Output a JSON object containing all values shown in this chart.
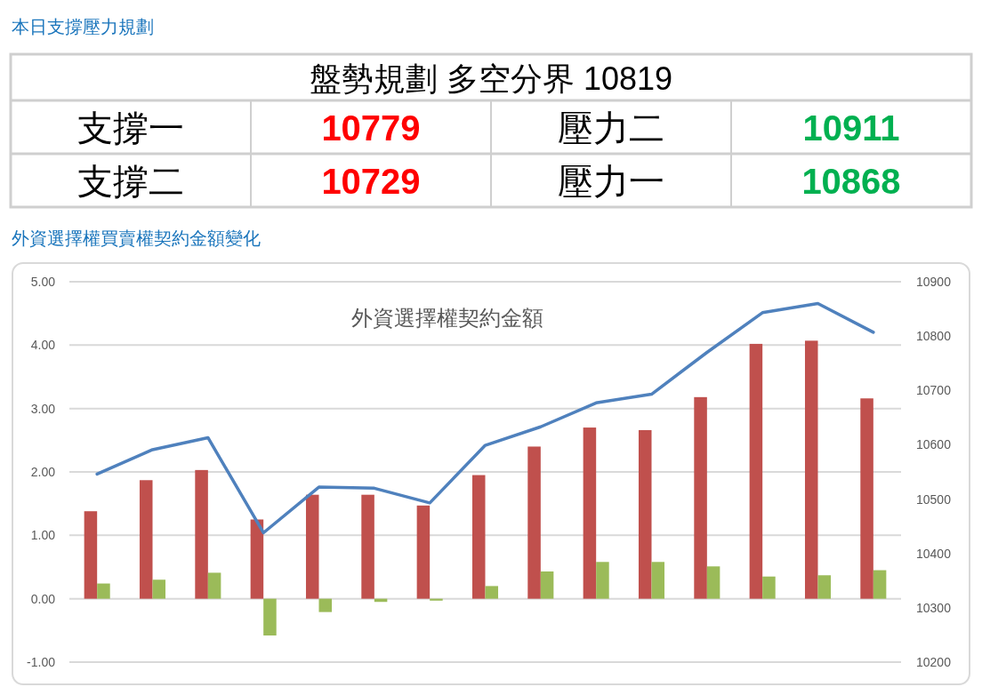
{
  "chart_data": [
    {
      "type": "other",
      "title": "本日支撐壓力規劃",
      "annotations": [
        "盤勢規劃 多空分界 10819",
        "支撐一",
        "10779",
        "壓力二",
        "10911",
        "支撐二",
        "10729",
        "壓力一",
        "10868"
      ],
      "colors": [
        "#000000",
        "#000000",
        "#ff0000",
        "#000000",
        "#00b050",
        "#000000",
        "#ff0000",
        "#000000",
        "#00b050"
      ]
    },
    {
      "type": "bar",
      "title": "外資選擇權買賣權契約金額變化",
      "subtitle": "外資選擇權契約金額",
      "categories": [
        null,
        null,
        null,
        null,
        null,
        null,
        null,
        null,
        null,
        null,
        null,
        null,
        null,
        null,
        null
      ],
      "series": [
        {
          "color": "#c0504d",
          "values": [
            1.38,
            1.87,
            2.03,
            1.25,
            1.64,
            1.64,
            1.47,
            1.95,
            2.4,
            2.7,
            2.66,
            3.18,
            4.02,
            4.07,
            3.16
          ]
        },
        {
          "color": "#9bbb59",
          "values": [
            0.24,
            0.3,
            0.41,
            -0.58,
            -0.21,
            -0.05,
            -0.03,
            0.2,
            0.43,
            0.58,
            0.58,
            0.51,
            0.35,
            0.37,
            0.45
          ]
        },
        {
          "type": "line",
          "axis": "y2",
          "color": "#4f81bd",
          "values": [
            10546,
            10591,
            10613,
            10438,
            10522,
            10520,
            10493,
            10599,
            10633,
            10677,
            10693,
            10770,
            10843,
            10860,
            10807
          ]
        }
      ],
      "ylim": [
        -1,
        5
      ],
      "yticks": [
        {
          "value": -1,
          "label": "-1.00"
        },
        {
          "value": 0,
          "label": "0.00"
        },
        {
          "value": 1,
          "label": "1.00"
        },
        {
          "value": 2,
          "label": "2.00"
        },
        {
          "value": 3,
          "label": "3.00"
        },
        {
          "value": 4,
          "label": "4.00"
        },
        {
          "value": 5,
          "label": "5.00"
        }
      ],
      "y2lim": [
        10200,
        10900
      ],
      "y2ticks": [
        10200,
        10300,
        10400,
        10500,
        10600,
        10700,
        10800,
        10900
      ],
      "grid": "y"
    }
  ]
}
